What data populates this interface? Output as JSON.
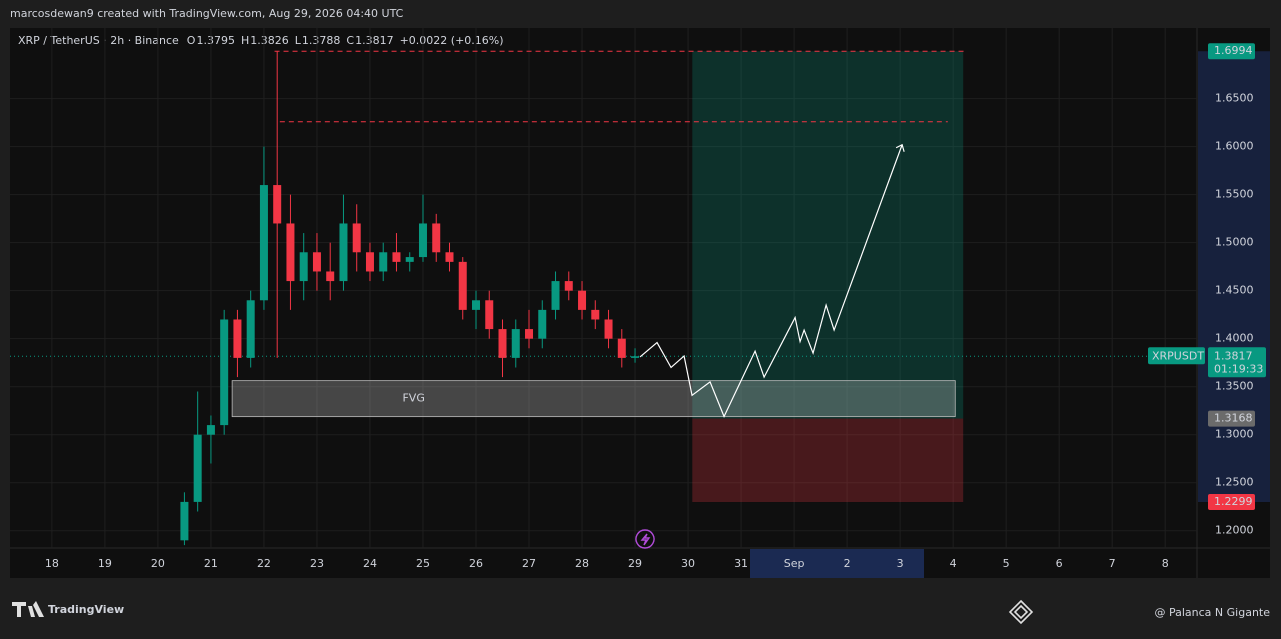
{
  "header": "marcosdewan9 created with TradingView.com, Aug 29, 2026 04:40 UTC",
  "legend": {
    "symbol": "XRP / TetherUS · 2h · Binance",
    "items": [
      {
        "label": "O",
        "value": "1.3795"
      },
      {
        "label": "H",
        "value": "1.3826"
      },
      {
        "label": "L",
        "value": "1.3788"
      },
      {
        "label": "C",
        "value": "1.3817"
      }
    ],
    "change": "+0.0022 (+0.16%)"
  },
  "chart_data": {
    "type": "candlestick",
    "x": [
      20.5,
      20.75,
      21.0,
      21.25,
      21.5,
      21.75,
      22.0,
      22.25,
      22.5,
      22.75,
      23.0,
      23.25,
      23.5,
      23.75,
      24.0,
      24.25,
      24.5,
      24.75,
      25.0,
      25.25,
      25.5,
      25.75,
      26.0,
      26.25,
      26.5,
      26.75,
      27.0,
      27.25,
      27.5,
      27.75,
      28.0,
      28.25,
      28.5,
      28.75,
      29.0
    ],
    "open": [
      1.19,
      1.23,
      1.3,
      1.31,
      1.42,
      1.38,
      1.44,
      1.56,
      1.52,
      1.46,
      1.49,
      1.47,
      1.46,
      1.52,
      1.49,
      1.47,
      1.49,
      1.48,
      1.485,
      1.52,
      1.49,
      1.48,
      1.43,
      1.44,
      1.41,
      1.38,
      1.41,
      1.4,
      1.43,
      1.46,
      1.45,
      1.43,
      1.42,
      1.4,
      1.38
    ],
    "high": [
      1.24,
      1.345,
      1.32,
      1.43,
      1.43,
      1.45,
      1.6,
      1.6994,
      1.55,
      1.51,
      1.51,
      1.5,
      1.55,
      1.54,
      1.5,
      1.5,
      1.51,
      1.49,
      1.55,
      1.53,
      1.5,
      1.485,
      1.45,
      1.45,
      1.42,
      1.42,
      1.43,
      1.44,
      1.47,
      1.47,
      1.46,
      1.44,
      1.43,
      1.41,
      1.39
    ],
    "low": [
      1.185,
      1.22,
      1.27,
      1.3,
      1.36,
      1.37,
      1.43,
      1.38,
      1.43,
      1.44,
      1.45,
      1.44,
      1.45,
      1.47,
      1.46,
      1.46,
      1.47,
      1.47,
      1.48,
      1.48,
      1.47,
      1.42,
      1.41,
      1.4,
      1.36,
      1.37,
      1.39,
      1.39,
      1.42,
      1.44,
      1.42,
      1.41,
      1.39,
      1.37,
      1.375
    ],
    "close": [
      1.23,
      1.3,
      1.31,
      1.42,
      1.38,
      1.44,
      1.56,
      1.52,
      1.46,
      1.49,
      1.47,
      1.46,
      1.52,
      1.49,
      1.47,
      1.49,
      1.48,
      1.485,
      1.52,
      1.49,
      1.48,
      1.43,
      1.44,
      1.41,
      1.38,
      1.41,
      1.4,
      1.43,
      1.46,
      1.45,
      1.43,
      1.42,
      1.4,
      1.38,
      1.3817
    ],
    "up_color": "#089981",
    "down_color": "#f23645",
    "xlim": [
      17.21,
      39.6
    ],
    "ylim": [
      1.182,
      1.709
    ],
    "xticks": [
      18,
      19,
      20,
      21,
      22,
      23,
      24,
      25,
      26,
      27,
      28,
      29,
      30,
      31,
      {
        "value": 32,
        "label": "Sep"
      },
      {
        "value": 33,
        "label": "2"
      },
      {
        "value": 34,
        "label": "3"
      },
      {
        "value": 35,
        "label": "4"
      },
      {
        "value": 36,
        "label": "5"
      },
      {
        "value": 37,
        "label": "6"
      },
      {
        "value": 38,
        "label": "7"
      },
      {
        "value": 39,
        "label": "8"
      }
    ],
    "yticks": [
      {
        "value": 1.2,
        "label": "1.2000"
      },
      {
        "value": 1.25,
        "label": "1.2500"
      },
      {
        "value": 1.3,
        "label": "1.3000"
      },
      {
        "value": 1.35,
        "label": "1.3500"
      },
      {
        "value": 1.4,
        "label": "1.4000"
      },
      {
        "value": 1.45,
        "label": "1.4500"
      },
      {
        "value": 1.5,
        "label": "1.5000"
      },
      {
        "value": 1.55,
        "label": "1.5500"
      },
      {
        "value": 1.6,
        "label": "1.6000"
      },
      {
        "value": 1.65,
        "label": "1.6500"
      }
    ],
    "grid": true,
    "fvg": {
      "label": "FVG",
      "x": [
        21.4,
        35.04
      ],
      "y": [
        1.3188,
        1.3563
      ]
    },
    "position": {
      "x": [
        30.08,
        35.19
      ],
      "entry": 1.3168,
      "target": 1.6994,
      "stop": 1.2299
    },
    "dashed_lines": [
      {
        "y": 1.6994,
        "x": [
          22.2,
          35.2
        ]
      },
      {
        "y": 1.626,
        "x": [
          22.3,
          34.9
        ]
      }
    ],
    "projection": {
      "x": [
        29.094,
        29.415,
        29.679,
        29.925,
        30.075,
        30.415,
        30.679,
        31.264,
        31.434,
        32.019,
        32.113,
        32.189,
        32.358,
        32.604,
        32.755,
        34.038
      ],
      "y": [
        1.381,
        1.396,
        1.37,
        1.382,
        1.341,
        1.355,
        1.319,
        1.387,
        1.36,
        1.422,
        1.397,
        1.409,
        1.385,
        1.435,
        1.409,
        1.602
      ]
    },
    "last_price": {
      "symbol": "XRPUSDT",
      "value": 1.3817,
      "countdown": "01:19:33"
    }
  },
  "footer": {
    "brand": "TradingView",
    "credit": "@ Palanca N Gigante"
  }
}
